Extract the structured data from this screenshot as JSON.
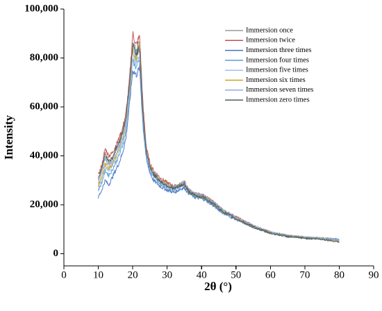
{
  "chart_data": {
    "type": "line",
    "title": "",
    "xlabel": "2θ (°)",
    "ylabel": "Intensity",
    "xlim": [
      0,
      90
    ],
    "ylim": [
      -5000,
      100000
    ],
    "x_ticks": [
      0,
      10,
      20,
      30,
      40,
      50,
      60,
      70,
      80,
      90
    ],
    "x_tick_labels": [
      "0",
      "10",
      "20",
      "30",
      "40",
      "50",
      "60",
      "70",
      "80",
      "90"
    ],
    "y_ticks": [
      0,
      20000,
      40000,
      60000,
      80000,
      100000
    ],
    "y_tick_labels": [
      "0",
      "20,000",
      "40,000",
      "60,000",
      "80,000",
      "100,000"
    ],
    "grid": false,
    "legend_position": "top-right",
    "x": [
      10,
      11,
      12,
      13,
      14,
      15,
      16,
      17,
      18,
      19,
      20,
      21,
      22,
      23,
      24,
      25,
      26,
      28,
      30,
      32,
      34,
      35,
      36,
      38,
      40,
      41,
      42,
      44,
      46,
      48,
      50,
      55,
      60,
      65,
      70,
      75,
      80
    ],
    "series": [
      {
        "name": "Immersion once",
        "color": "#9a9a9a",
        "values": [
          30000,
          34000,
          40000,
          37000,
          38500,
          42000,
          45000,
          49000,
          55000,
          68000,
          86000,
          83000,
          87000,
          58000,
          42000,
          36000,
          33000,
          30000,
          28500,
          27000,
          28000,
          28500,
          26000,
          24000,
          23500,
          23000,
          22000,
          20000,
          17500,
          16000,
          14500,
          11000,
          8500,
          7200,
          6500,
          6200,
          5500
        ]
      },
      {
        "name": "Immersion twice",
        "color": "#c0504d",
        "values": [
          32000,
          36000,
          43000,
          40000,
          41000,
          44000,
          47000,
          51000,
          57000,
          70000,
          90000,
          85000,
          89000,
          60000,
          43000,
          37000,
          34000,
          31000,
          29000,
          27500,
          28500,
          29500,
          26500,
          24500,
          24000,
          23500,
          22500,
          20500,
          18000,
          16500,
          15000,
          11500,
          8800,
          7400,
          6700,
          6300,
          5600
        ]
      },
      {
        "name": "Immersion three times",
        "color": "#4472c4",
        "values": [
          23000,
          26000,
          30000,
          28000,
          31000,
          34000,
          37000,
          41000,
          47000,
          60000,
          75000,
          73000,
          76000,
          52000,
          38000,
          33000,
          30000,
          27500,
          26000,
          25000,
          26500,
          27000,
          25000,
          23000,
          22500,
          22000,
          21000,
          19000,
          16800,
          15300,
          14000,
          10800,
          8400,
          7100,
          6600,
          6300,
          5800
        ]
      },
      {
        "name": "Immersion four times",
        "color": "#5b9bd5",
        "values": [
          26000,
          29000,
          34000,
          32000,
          34000,
          37000,
          40000,
          44000,
          50000,
          63000,
          79000,
          76000,
          79000,
          54000,
          39000,
          34000,
          31500,
          28500,
          27000,
          26000,
          27500,
          28000,
          25500,
          23500,
          23000,
          22500,
          21500,
          19500,
          17200,
          15700,
          14300,
          11000,
          8600,
          7300,
          6600,
          6300,
          5700
        ]
      },
      {
        "name": "Immersion five times",
        "color": "#9dc3e6",
        "values": [
          27000,
          30500,
          36000,
          34000,
          35500,
          38500,
          41500,
          45500,
          51500,
          65000,
          81000,
          78000,
          81000,
          55500,
          40000,
          35000,
          32000,
          29000,
          27500,
          26500,
          28000,
          29000,
          26000,
          24000,
          23500,
          23000,
          22000,
          20000,
          17600,
          16000,
          14600,
          11200,
          8700,
          7300,
          6600,
          6200,
          5500
        ]
      },
      {
        "name": "Immersion six times",
        "color": "#c9a227",
        "values": [
          28000,
          31500,
          37000,
          35000,
          36500,
          39500,
          42500,
          46500,
          53000,
          66500,
          83000,
          80000,
          85000,
          57000,
          41000,
          36000,
          33000,
          30000,
          28000,
          26800,
          28200,
          28800,
          26000,
          24000,
          23500,
          23000,
          22000,
          20000,
          17500,
          16000,
          14500,
          11000,
          8500,
          7200,
          6500,
          6200,
          5400
        ]
      },
      {
        "name": "Immersion seven times",
        "color": "#8faadc",
        "values": [
          29000,
          33000,
          39000,
          36000,
          37500,
          40500,
          43500,
          47500,
          54000,
          67500,
          84000,
          81000,
          84000,
          57500,
          41500,
          36000,
          33000,
          30000,
          28200,
          27000,
          28500,
          29500,
          26500,
          24500,
          24000,
          23500,
          22500,
          20500,
          18000,
          16300,
          14800,
          11300,
          8700,
          7300,
          6600,
          6200,
          5500
        ]
      },
      {
        "name": "Immersion zero times",
        "color": "#4d5d53",
        "values": [
          31000,
          35000,
          41000,
          38000,
          39000,
          42500,
          45500,
          49500,
          55500,
          68500,
          85000,
          82000,
          84000,
          56500,
          41000,
          35500,
          32500,
          29500,
          27800,
          26500,
          27800,
          28500,
          25800,
          23800,
          23200,
          22800,
          21800,
          19800,
          17300,
          15800,
          14300,
          10900,
          8400,
          7000,
          6300,
          5900,
          4800
        ]
      }
    ]
  }
}
